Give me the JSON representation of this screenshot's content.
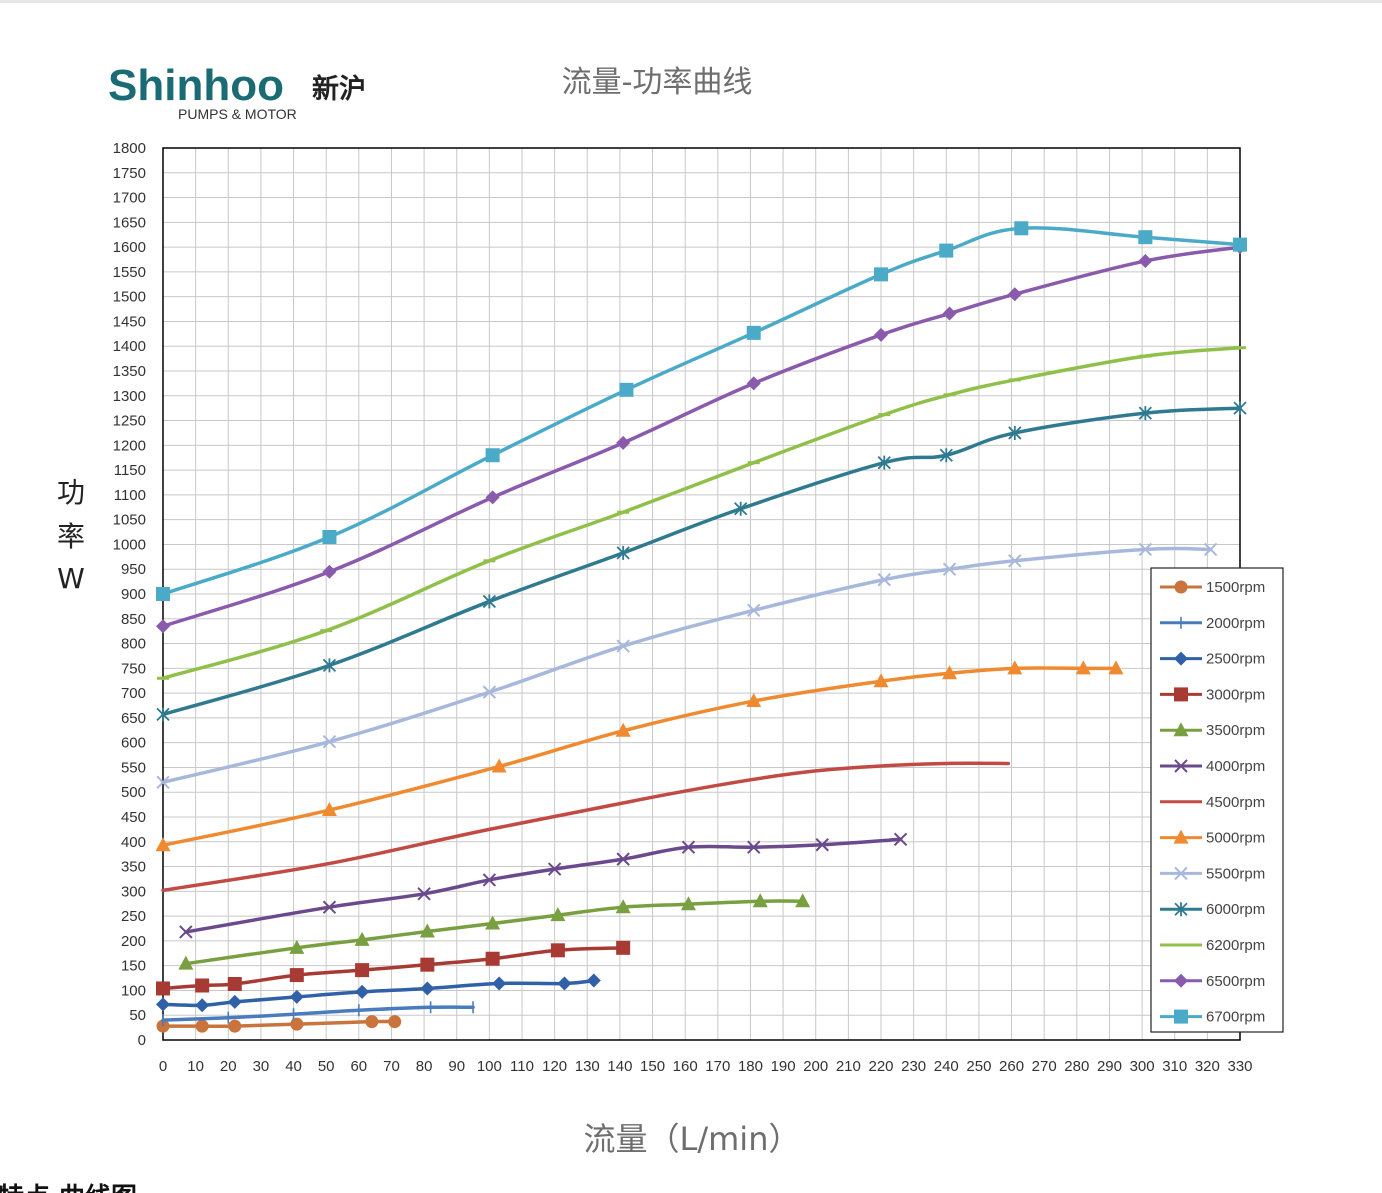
{
  "brand": {
    "name": "Shinhoo",
    "name_cn": "新沪",
    "tagline": "PUMPS & MOTOR"
  },
  "footer_fragment": "特点  曲线图",
  "chart_data": {
    "type": "line",
    "title": "流量-功率曲线",
    "xlabel": "流量（L/min）",
    "ylabel": "功率 W",
    "xlim": [
      0,
      330
    ],
    "ylim": [
      0,
      1800
    ],
    "xticks": [
      0,
      10,
      20,
      30,
      40,
      50,
      60,
      70,
      80,
      90,
      100,
      110,
      120,
      130,
      140,
      150,
      160,
      170,
      180,
      190,
      200,
      210,
      220,
      230,
      240,
      250,
      260,
      270,
      280,
      290,
      300,
      310,
      320,
      330
    ],
    "yticks": [
      0,
      50,
      100,
      150,
      200,
      250,
      300,
      350,
      400,
      450,
      500,
      550,
      600,
      650,
      700,
      750,
      800,
      850,
      900,
      950,
      1000,
      1050,
      1100,
      1150,
      1200,
      1250,
      1300,
      1350,
      1400,
      1450,
      1500,
      1550,
      1600,
      1650,
      1700,
      1750,
      1800
    ],
    "grid": true,
    "legend_position": "right",
    "series": [
      {
        "name": "1500rpm",
        "color": "#c8743c",
        "marker": "circle",
        "x": [
          0,
          12,
          22,
          41,
          64,
          71
        ],
        "y": [
          28,
          28,
          28,
          32,
          37,
          37
        ]
      },
      {
        "name": "2000rpm",
        "color": "#4a7bbf",
        "marker": "plus",
        "x": [
          0,
          20,
          40,
          60,
          82,
          95
        ],
        "y": [
          40,
          45,
          52,
          60,
          66,
          66
        ]
      },
      {
        "name": "2500rpm",
        "color": "#3060a8",
        "marker": "diamond",
        "x": [
          0,
          12,
          22,
          41,
          61,
          81,
          103,
          123,
          132
        ],
        "y": [
          72,
          70,
          77,
          87,
          97,
          104,
          114,
          114,
          120
        ]
      },
      {
        "name": "3000rpm",
        "color": "#a83a34",
        "marker": "square",
        "x": [
          0,
          12,
          22,
          41,
          61,
          81,
          101,
          121,
          141
        ],
        "y": [
          104,
          110,
          113,
          131,
          141,
          152,
          164,
          181,
          186
        ]
      },
      {
        "name": "3500rpm",
        "color": "#78a040",
        "marker": "triangle",
        "x": [
          7,
          41,
          61,
          81,
          101,
          121,
          141,
          161,
          183,
          196
        ],
        "y": [
          154,
          186,
          202,
          219,
          235,
          252,
          268,
          274,
          280,
          280
        ]
      },
      {
        "name": "4000rpm",
        "color": "#6a4a8c",
        "marker": "x",
        "x": [
          7,
          51,
          80,
          100,
          120,
          141,
          161,
          181,
          202,
          226
        ],
        "y": [
          218,
          268,
          295,
          323,
          345,
          365,
          389,
          389,
          394,
          405
        ]
      },
      {
        "name": "4500rpm",
        "color": "#c24a44",
        "marker": "none",
        "x": [
          0,
          50,
          100,
          150,
          180,
          200,
          220,
          240,
          259
        ],
        "y": [
          302,
          355,
          425,
          490,
          525,
          543,
          553,
          558,
          558
        ]
      },
      {
        "name": "5000rpm",
        "color": "#f08a30",
        "marker": "triangle",
        "x": [
          0,
          51,
          103,
          141,
          181,
          220,
          241,
          261,
          282,
          292
        ],
        "y": [
          393,
          464,
          552,
          624,
          684,
          724,
          740,
          750,
          750,
          750
        ]
      },
      {
        "name": "5500rpm",
        "color": "#a8b8dc",
        "marker": "x",
        "x": [
          0,
          51,
          100,
          141,
          181,
          221,
          241,
          261,
          301,
          321
        ],
        "y": [
          520,
          602,
          702,
          795,
          867,
          929,
          950,
          967,
          990,
          990
        ]
      },
      {
        "name": "6000rpm",
        "color": "#2f7a90",
        "marker": "asterisk",
        "x": [
          0,
          51,
          100,
          141,
          177,
          221,
          240,
          261,
          301,
          330
        ],
        "y": [
          657,
          756,
          885,
          983,
          1072,
          1165,
          1180,
          1225,
          1265,
          1275
        ]
      },
      {
        "name": "6200rpm",
        "color": "#90c04a",
        "marker": "dash",
        "x": [
          0,
          50,
          100,
          141,
          181,
          221,
          241,
          261,
          301,
          330
        ],
        "y": [
          730,
          826,
          967,
          1065,
          1165,
          1262,
          1302,
          1332,
          1380,
          1397
        ]
      },
      {
        "name": "6500rpm",
        "color": "#8a5aac",
        "marker": "diamond",
        "x": [
          0,
          51,
          101,
          141,
          181,
          220,
          241,
          261,
          301,
          330
        ],
        "y": [
          835,
          945,
          1095,
          1205,
          1325,
          1423,
          1466,
          1505,
          1572,
          1600
        ]
      },
      {
        "name": "6700rpm",
        "color": "#4aaac8",
        "marker": "square",
        "x": [
          0,
          51,
          101,
          142,
          181,
          220,
          240,
          263,
          301,
          330
        ],
        "y": [
          900,
          1015,
          1180,
          1312,
          1427,
          1545,
          1593,
          1638,
          1620,
          1605
        ]
      }
    ]
  }
}
